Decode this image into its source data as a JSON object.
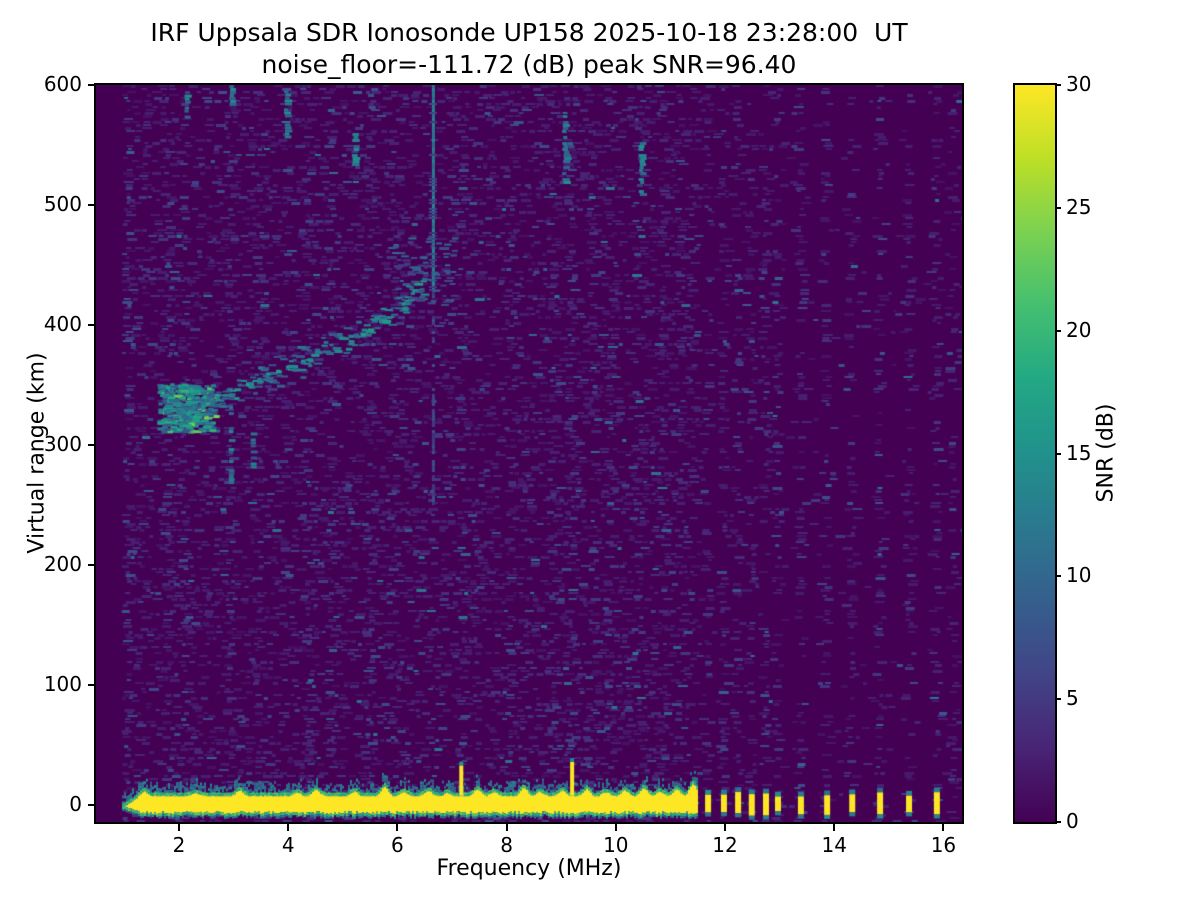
{
  "figure": {
    "background_color": "#ffffff",
    "axis_color": "#000000"
  },
  "chart_data": {
    "type": "heatmap",
    "title": "IRF Uppsala SDR Ionosonde UP158 2025-10-18 23:28:00  UT",
    "subtitle": "noise_floor=-111.72 (dB) peak SNR=96.40",
    "xlabel": "Frequency (MHz)",
    "ylabel": "Virtual range (km)",
    "xlim": [
      0.48,
      16.34
    ],
    "ylim": [
      -14,
      600
    ],
    "x_ticks": [
      2,
      4,
      6,
      8,
      10,
      12,
      14,
      16
    ],
    "y_ticks": [
      0,
      100,
      200,
      300,
      400,
      500,
      600
    ],
    "noise_floor_db": -111.72,
    "peak_snr_db": 96.4,
    "grid": false,
    "colorbar": {
      "label": "SNR (dB)",
      "ticks": [
        0,
        5,
        10,
        15,
        20,
        25,
        30
      ],
      "range": [
        0,
        30
      ]
    },
    "colormap": {
      "name": "viridis",
      "stops": [
        [
          0.0,
          "#440154"
        ],
        [
          0.1,
          "#482475"
        ],
        [
          0.2,
          "#414487"
        ],
        [
          0.3,
          "#355f8d"
        ],
        [
          0.4,
          "#2a788e"
        ],
        [
          0.5,
          "#21918c"
        ],
        [
          0.6,
          "#22a884"
        ],
        [
          0.7,
          "#44bf70"
        ],
        [
          0.8,
          "#7ad151"
        ],
        [
          0.9,
          "#bddf26"
        ],
        [
          1.0,
          "#fde725"
        ]
      ]
    },
    "data_extent_mhz": [
      0.95,
      16.2
    ],
    "features": {
      "ground_band": {
        "x_start": 1.0,
        "x_end": 11.5,
        "km_top": 10,
        "km_bottom": -5,
        "snr": 30
      },
      "band_spikes": [
        {
          "f": 7.17,
          "km": 33
        },
        {
          "f": 9.2,
          "km": 36
        }
      ],
      "band_mounds": [
        {
          "f": 1.35,
          "km": 14
        },
        {
          "f": 2.3,
          "km": 13
        },
        {
          "f": 3.1,
          "km": 15
        },
        {
          "f": 4.15,
          "km": 13
        },
        {
          "f": 4.5,
          "km": 16
        },
        {
          "f": 5.2,
          "km": 14
        },
        {
          "f": 5.75,
          "km": 18
        },
        {
          "f": 6.1,
          "km": 14
        },
        {
          "f": 6.55,
          "km": 15
        },
        {
          "f": 6.9,
          "km": 13
        },
        {
          "f": 7.45,
          "km": 16
        },
        {
          "f": 7.75,
          "km": 14
        },
        {
          "f": 8.3,
          "km": 17
        },
        {
          "f": 8.6,
          "km": 14
        },
        {
          "f": 9.0,
          "km": 15
        },
        {
          "f": 9.45,
          "km": 16
        },
        {
          "f": 9.8,
          "km": 14
        },
        {
          "f": 10.15,
          "km": 15
        },
        {
          "f": 10.5,
          "km": 17
        },
        {
          "f": 10.8,
          "km": 14
        },
        {
          "f": 11.1,
          "km": 16
        },
        {
          "f": 11.4,
          "km": 20
        }
      ],
      "ground_pulses": [
        11.69,
        11.98,
        12.24,
        12.49,
        12.75,
        12.97,
        13.39,
        13.87,
        14.33,
        14.84,
        15.37,
        15.88
      ],
      "f_trace": {
        "points": [
          [
            1.7,
            330
          ],
          [
            2.1,
            328
          ],
          [
            2.6,
            338
          ],
          [
            3.0,
            345
          ],
          [
            3.5,
            358
          ],
          [
            4.0,
            367
          ],
          [
            4.5,
            377
          ],
          [
            5.0,
            388
          ],
          [
            5.5,
            400
          ],
          [
            5.9,
            413
          ],
          [
            6.2,
            425
          ],
          [
            6.5,
            440
          ]
        ],
        "start_blob": {
          "f": [
            1.6,
            2.6
          ],
          "km": [
            312,
            352
          ],
          "snr_max": 25
        },
        "verticals": [
          {
            "f": 2.95,
            "km": [
              268,
              345
            ]
          },
          {
            "f": 3.35,
            "km": [
              278,
              318
            ]
          }
        ],
        "spread_cloud": {
          "f": [
            5.9,
            7.0
          ],
          "km": [
            415,
            478
          ]
        }
      },
      "rfi_line": {
        "f": 6.65,
        "km": [
          430,
          600
        ],
        "snr": 12,
        "faint_km": [
          250,
          430
        ]
      },
      "rfi_stripes": [
        {
          "f": 1.1,
          "s": 0.9
        },
        {
          "f": 1.8,
          "s": 1.2
        },
        {
          "f": 2.12,
          "s": 1.1
        },
        {
          "f": 2.95,
          "s": 1.0
        },
        {
          "f": 3.5,
          "s": 0.8
        },
        {
          "f": 4.4,
          "s": 1.0
        },
        {
          "f": 4.8,
          "s": 0.7
        },
        {
          "f": 5.5,
          "s": 1.1
        },
        {
          "f": 6.0,
          "s": 0.6
        },
        {
          "f": 7.2,
          "s": 0.8
        },
        {
          "f": 8.1,
          "s": 0.7
        },
        {
          "f": 8.85,
          "s": 0.8
        },
        {
          "f": 9.2,
          "s": 1.0
        },
        {
          "f": 9.6,
          "s": 0.8
        },
        {
          "f": 9.9,
          "s": 0.7
        },
        {
          "f": 10.45,
          "s": 0.9
        },
        {
          "f": 10.9,
          "s": 0.8
        },
        {
          "f": 11.2,
          "s": 0.7
        }
      ],
      "top_streaks": [
        {
          "f": 2.12,
          "km": [
            570,
            592
          ]
        },
        {
          "f": 2.95,
          "km": [
            583,
            600
          ]
        },
        {
          "f": 3.95,
          "km": [
            558,
            598
          ]
        },
        {
          "f": 5.2,
          "km": [
            532,
            560
          ]
        },
        {
          "f": 9.05,
          "km": [
            518,
            575
          ]
        },
        {
          "f": 10.45,
          "km": [
            505,
            555
          ]
        }
      ]
    }
  }
}
